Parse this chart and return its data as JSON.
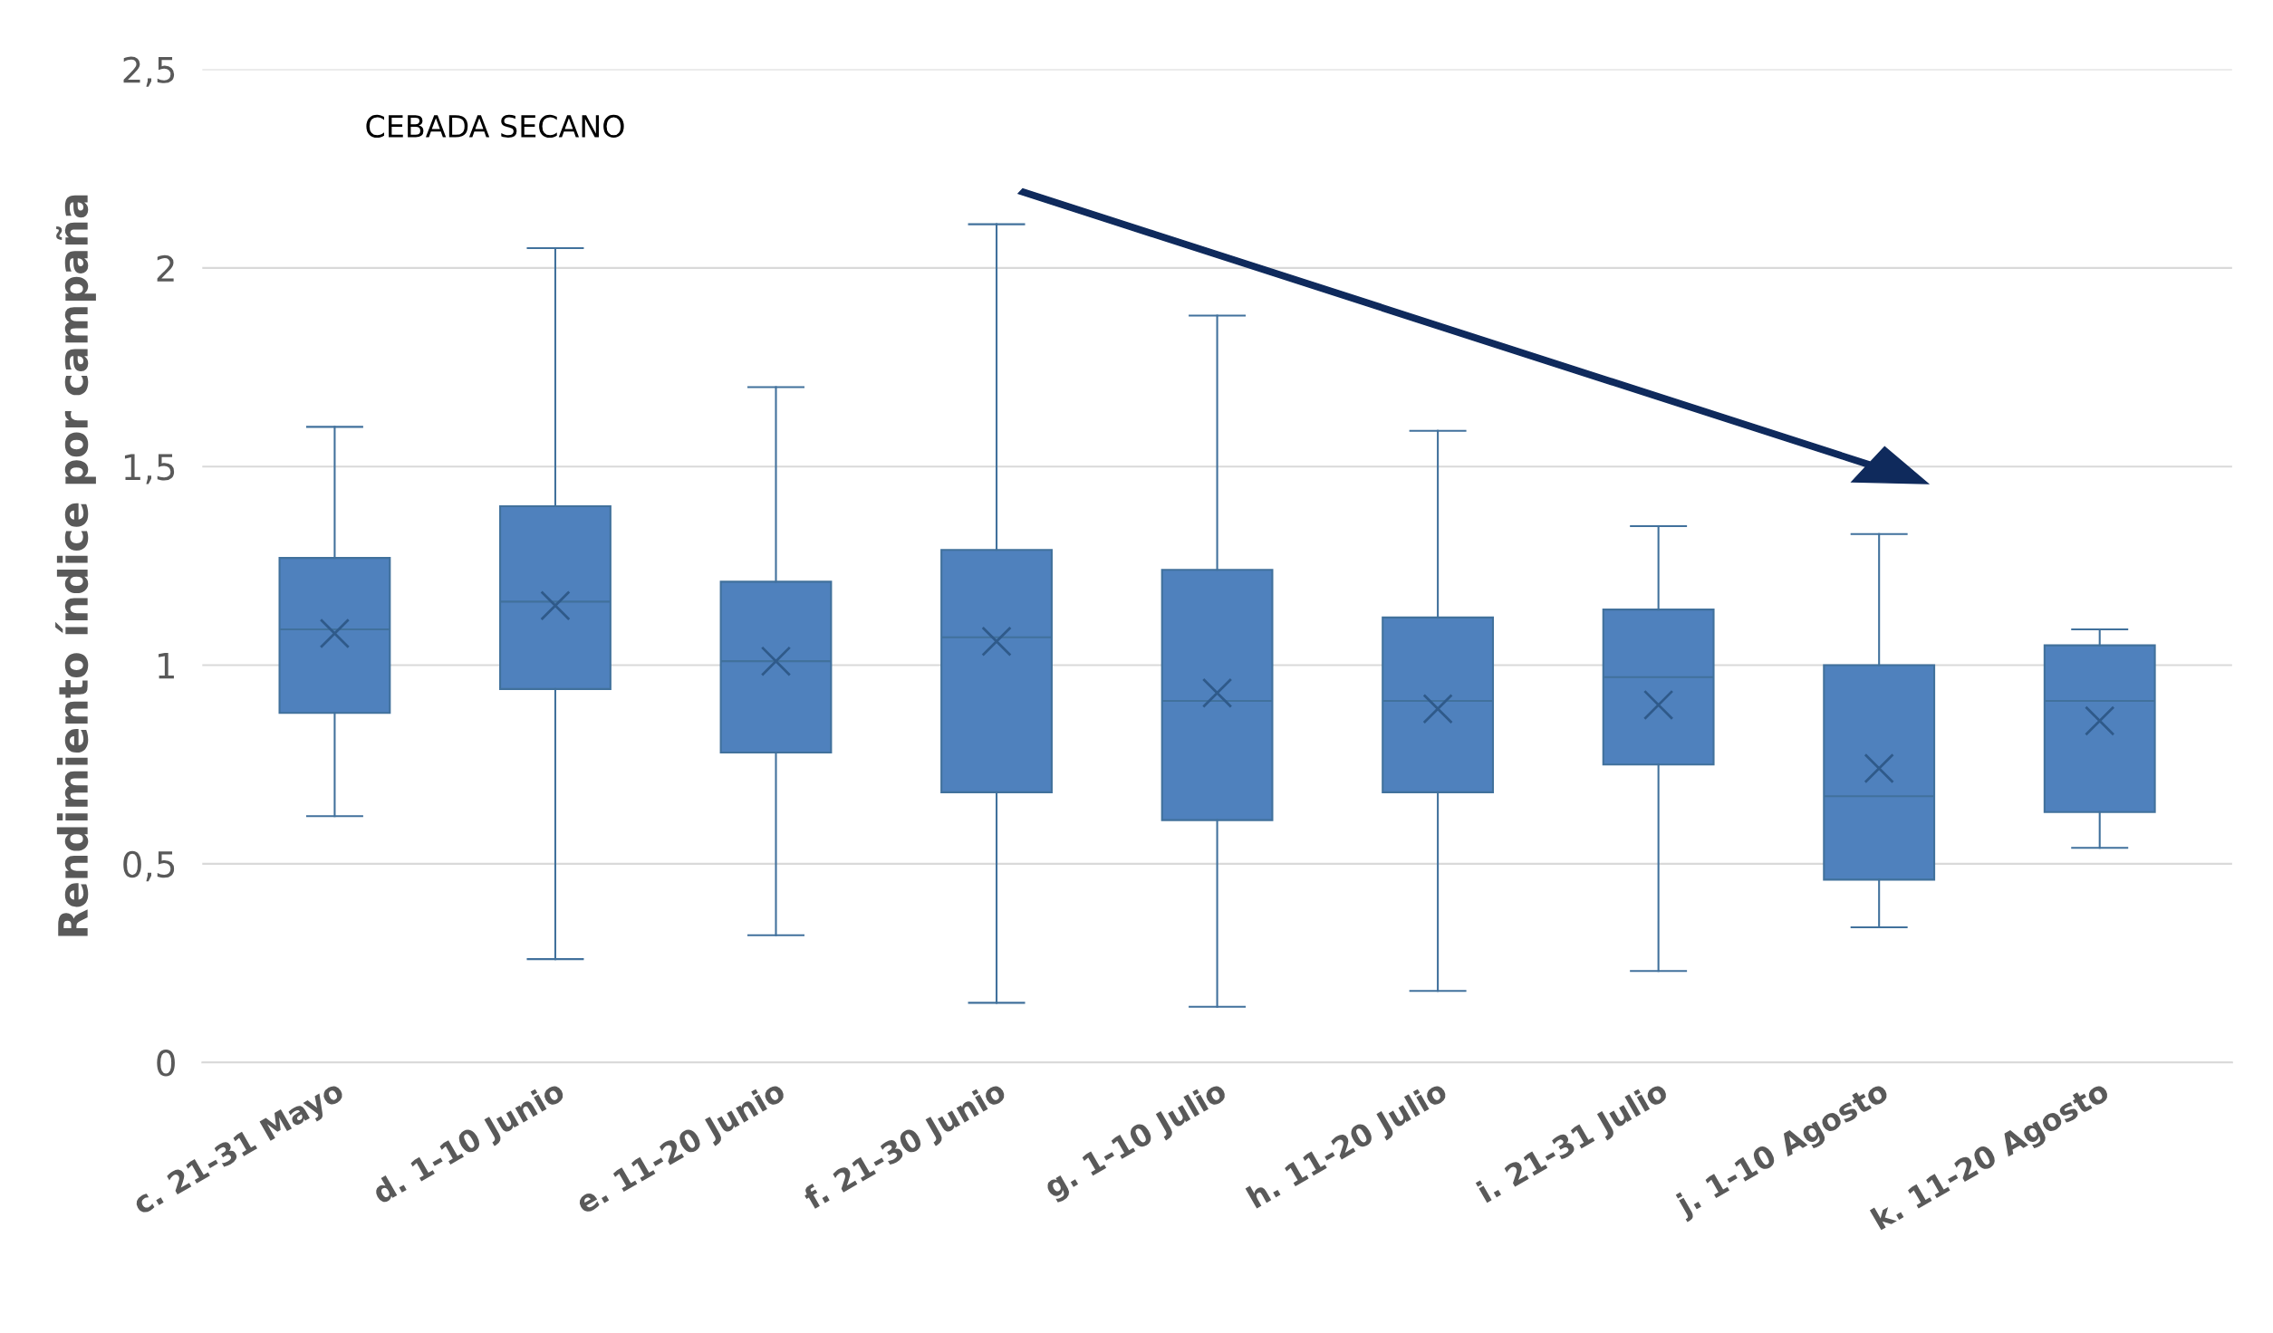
{
  "chart_data": {
    "type": "box",
    "title": "CEBADA SECANO",
    "ylabel": "Rendimiento índice por campaña",
    "categories": [
      "c. 21-31 Mayo",
      "d. 1-10 Junio",
      "e. 11-20 Junio",
      "f. 21-30 Junio",
      "g. 1-10 Julio",
      "h. 11-20 Julio",
      "i. 21-31 Julio",
      "j. 1-10 Agosto",
      "k. 11-20 Agosto"
    ],
    "boxes": [
      {
        "low": 0.62,
        "q1": 0.88,
        "median": 1.09,
        "q3": 1.27,
        "high": 1.6,
        "mean": 1.08
      },
      {
        "low": 0.26,
        "q1": 0.94,
        "median": 1.16,
        "q3": 1.4,
        "high": 2.05,
        "mean": 1.15
      },
      {
        "low": 0.32,
        "q1": 0.78,
        "median": 1.01,
        "q3": 1.21,
        "high": 1.7,
        "mean": 1.01
      },
      {
        "low": 0.15,
        "q1": 0.68,
        "median": 1.07,
        "q3": 1.29,
        "high": 2.11,
        "mean": 1.06
      },
      {
        "low": 0.14,
        "q1": 0.61,
        "median": 0.91,
        "q3": 1.24,
        "high": 1.88,
        "mean": 0.93
      },
      {
        "low": 0.18,
        "q1": 0.68,
        "median": 0.91,
        "q3": 1.12,
        "high": 1.59,
        "mean": 0.89
      },
      {
        "low": 0.23,
        "q1": 0.75,
        "median": 0.97,
        "q3": 1.14,
        "high": 1.35,
        "mean": 0.9
      },
      {
        "low": 0.34,
        "q1": 0.46,
        "median": 0.67,
        "q3": 1.0,
        "high": 1.33,
        "mean": 0.74
      },
      {
        "low": 0.54,
        "q1": 0.63,
        "median": 0.91,
        "q3": 1.05,
        "high": 1.09,
        "mean": 0.86
      }
    ],
    "color": "#4f81bd",
    "ylim": [
      0,
      2.5
    ],
    "yticks": [
      0,
      {
        "value": 0.5,
        "label": "0,5"
      },
      1,
      {
        "value": 1.5,
        "label": "1,5"
      },
      2,
      {
        "value": 2.5,
        "label": "2,5"
      }
    ],
    "grid": "y"
  }
}
